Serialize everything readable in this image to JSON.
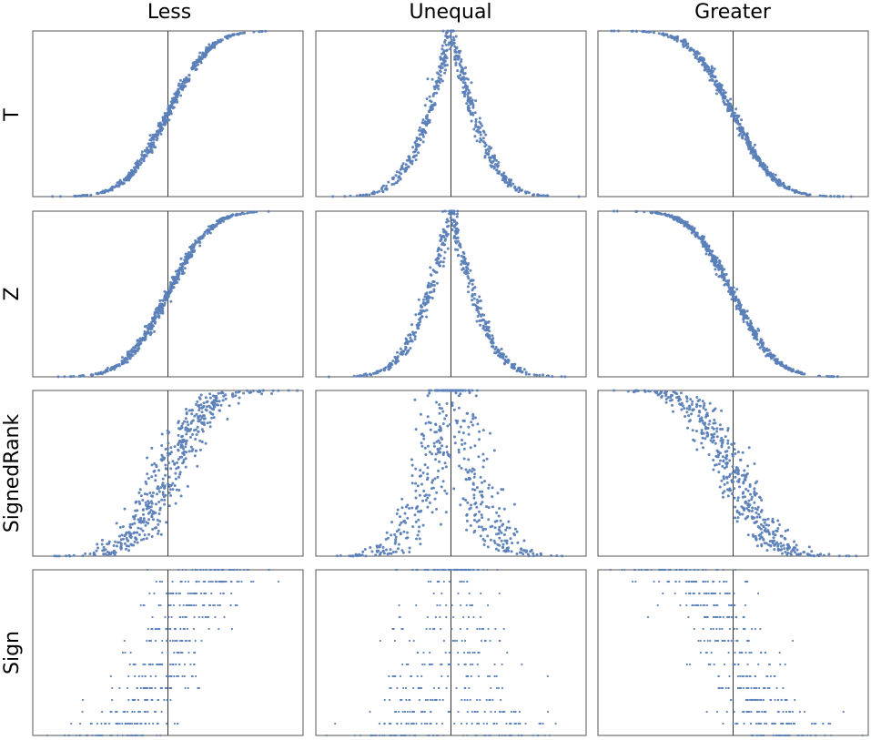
{
  "columns": [
    "Less",
    "Unequal",
    "Greater"
  ],
  "rows": [
    "T",
    "Z",
    "SignedRank",
    "Sign"
  ],
  "point_color": "#5b7fb8",
  "chart_data": {
    "type": "scatter",
    "layout": "grid 4 rows × 3 columns",
    "grid": false,
    "axes_labels_shown": false,
    "reference_line": "vertical line at x = 0 in every panel",
    "xlim": [
      -3.5,
      3.5
    ],
    "ylim": [
      0,
      1
    ],
    "panels_description": "Each panel scatters roughly 500 samples: x = sample statistic, y = p-value for the named test (row) and alternative hypothesis (column).",
    "panels": [
      {
        "row": "T",
        "column": "Less",
        "shape": "increasing sigmoid",
        "spread": 0.015
      },
      {
        "row": "T",
        "column": "Unequal",
        "shape": "peak at x = 0",
        "spread": 0.02
      },
      {
        "row": "T",
        "column": "Greater",
        "shape": "decreasing sigmoid",
        "spread": 0.015
      },
      {
        "row": "Z",
        "column": "Less",
        "shape": "increasing sigmoid",
        "spread": 0.015
      },
      {
        "row": "Z",
        "column": "Unequal",
        "shape": "peak at x = 0",
        "spread": 0.02
      },
      {
        "row": "Z",
        "column": "Greater",
        "shape": "decreasing sigmoid",
        "spread": 0.015
      },
      {
        "row": "SignedRank",
        "column": "Less",
        "shape": "increasing sigmoid",
        "spread": 0.06
      },
      {
        "row": "SignedRank",
        "column": "Unequal",
        "shape": "peak at x = 0",
        "spread": 0.07
      },
      {
        "row": "SignedRank",
        "column": "Greater",
        "shape": "decreasing sigmoid",
        "spread": 0.06
      },
      {
        "row": "Sign",
        "column": "Less",
        "shape": "increasing, discrete p-value levels",
        "spread": 0.18
      },
      {
        "row": "Sign",
        "column": "Unequal",
        "shape": "peak at x = 0, discrete p-value levels",
        "spread": 0.2
      },
      {
        "row": "Sign",
        "column": "Greater",
        "shape": "decreasing, discrete p-value levels",
        "spread": 0.18
      }
    ]
  }
}
